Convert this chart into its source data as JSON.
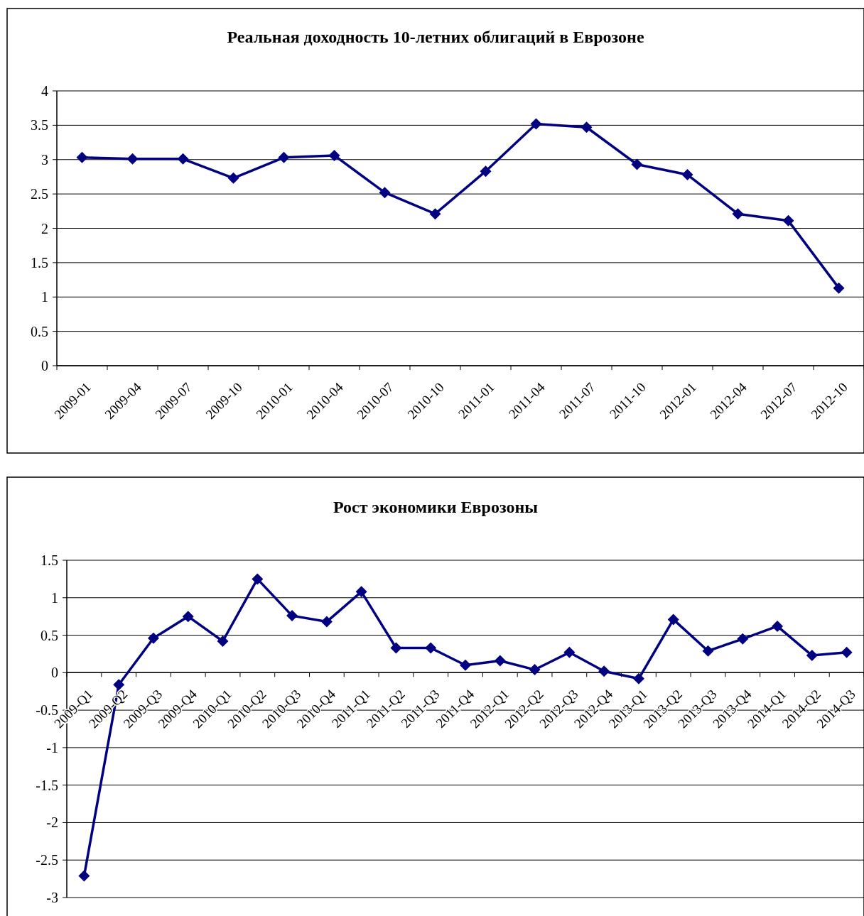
{
  "chart_data": [
    {
      "type": "line",
      "title": "Реальная доходность 10-летних облигаций в Еврозоне",
      "categories": [
        "2009-01",
        "2009-04",
        "2009-07",
        "2009-10",
        "2010-01",
        "2010-04",
        "2010-07",
        "2010-10",
        "2011-01",
        "2011-04",
        "2011-07",
        "2011-10",
        "2012-01",
        "2012-04",
        "2012-07",
        "2012-10"
      ],
      "series": [
        {
          "color": "#000080",
          "values": [
            3.03,
            3.01,
            3.01,
            2.73,
            3.03,
            3.06,
            2.52,
            2.21,
            2.83,
            3.52,
            3.47,
            2.93,
            2.78,
            2.21,
            2.11,
            1.13
          ]
        }
      ],
      "ylim": [
        0,
        4
      ],
      "yticks": [
        0,
        0.5,
        1,
        1.5,
        2,
        2.5,
        3,
        3.5,
        4
      ],
      "grid": "y",
      "marker": "diamond"
    },
    {
      "type": "line",
      "title": "Рост экономики Еврозоны",
      "categories": [
        "2009-Q1",
        "2009-Q2",
        "2009-Q3",
        "2009-Q4",
        "2010-Q1",
        "2010-Q2",
        "2010-Q3",
        "2010-Q4",
        "2011-Q1",
        "2011-Q2",
        "2011-Q3",
        "2011-Q4",
        "2012-Q1",
        "2012-Q2",
        "2012-Q3",
        "2012-Q4",
        "2013-Q1",
        "2013-Q2",
        "2013-Q3",
        "2013-Q4",
        "2014-Q1",
        "2014-Q2",
        "2014-Q3"
      ],
      "series": [
        {
          "color": "#000080",
          "values": [
            -2.71,
            -0.16,
            0.46,
            0.75,
            0.42,
            1.25,
            0.76,
            0.68,
            1.08,
            0.33,
            0.33,
            0.1,
            0.16,
            0.04,
            0.27,
            0.02,
            -0.08,
            0.71,
            0.29,
            0.45,
            0.62,
            0.23,
            0.27
          ]
        }
      ],
      "ylim": [
        -3,
        1.5
      ],
      "yticks": [
        -3,
        -2.5,
        -2,
        -1.5,
        -1,
        -0.5,
        0,
        0.5,
        1,
        1.5
      ],
      "grid": "y",
      "marker": "diamond"
    }
  ]
}
